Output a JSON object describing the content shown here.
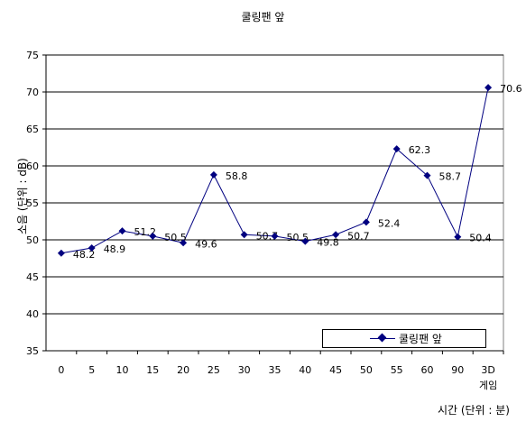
{
  "chart_data": {
    "type": "line",
    "title": "쿨링팬 앞",
    "ylabel": "소음 (단위 : dB)",
    "xlabel": "시간 (단위 : 분)",
    "categories": [
      "0",
      "5",
      "10",
      "15",
      "20",
      "25",
      "30",
      "35",
      "40",
      "45",
      "50",
      "55",
      "60",
      "90",
      "3D"
    ],
    "extra_tick_labels": {
      "3D": "게임"
    },
    "series": [
      {
        "name": "쿨링팬 앞",
        "values": [
          48.2,
          48.9,
          51.2,
          50.5,
          49.6,
          58.8,
          50.7,
          50.5,
          49.8,
          50.7,
          52.4,
          62.3,
          58.7,
          50.4,
          70.6
        ],
        "labels": [
          "48.2",
          "48.9",
          "51.2",
          "50.5",
          "49.6",
          "58.8",
          "50.7",
          "50.5",
          "49.8",
          "50.7",
          "52.4",
          "62.3",
          "58.7",
          "50.4",
          "70.6"
        ],
        "color": "#000080"
      }
    ],
    "ylim": [
      35,
      75
    ],
    "yticks": [
      "35",
      "40",
      "45",
      "50",
      "55",
      "60",
      "65",
      "70",
      "75"
    ],
    "grid": true,
    "legend": "bottom-right"
  }
}
